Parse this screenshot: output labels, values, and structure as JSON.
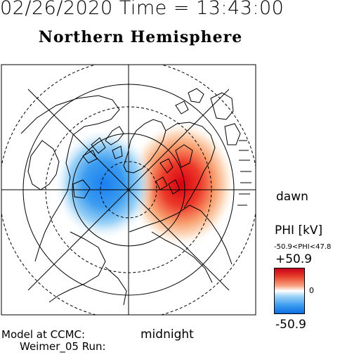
{
  "header": {
    "date_time": "02/26/2020 Time = 13:43:00",
    "hemisphere": "Northern Hemisphere"
  },
  "labels": {
    "dawn": "dawn",
    "midnight": "midnight",
    "model_line": "Model at CCMC:",
    "run_line": "Weimer_05 Run:"
  },
  "colorbar": {
    "title": "PHI [kV]",
    "range_text": "-50.9<PHI<47.8",
    "max_label": "+50.9",
    "mid_label": "0",
    "min_label": "-50.9",
    "colors": [
      "#c8001c",
      "#f8a080",
      "#ffffff",
      "#9cd2f6",
      "#0a6fe0"
    ]
  },
  "potential": {
    "positive_cell_color": "#e00000",
    "negative_cell_color": "#1a7ff0"
  }
}
